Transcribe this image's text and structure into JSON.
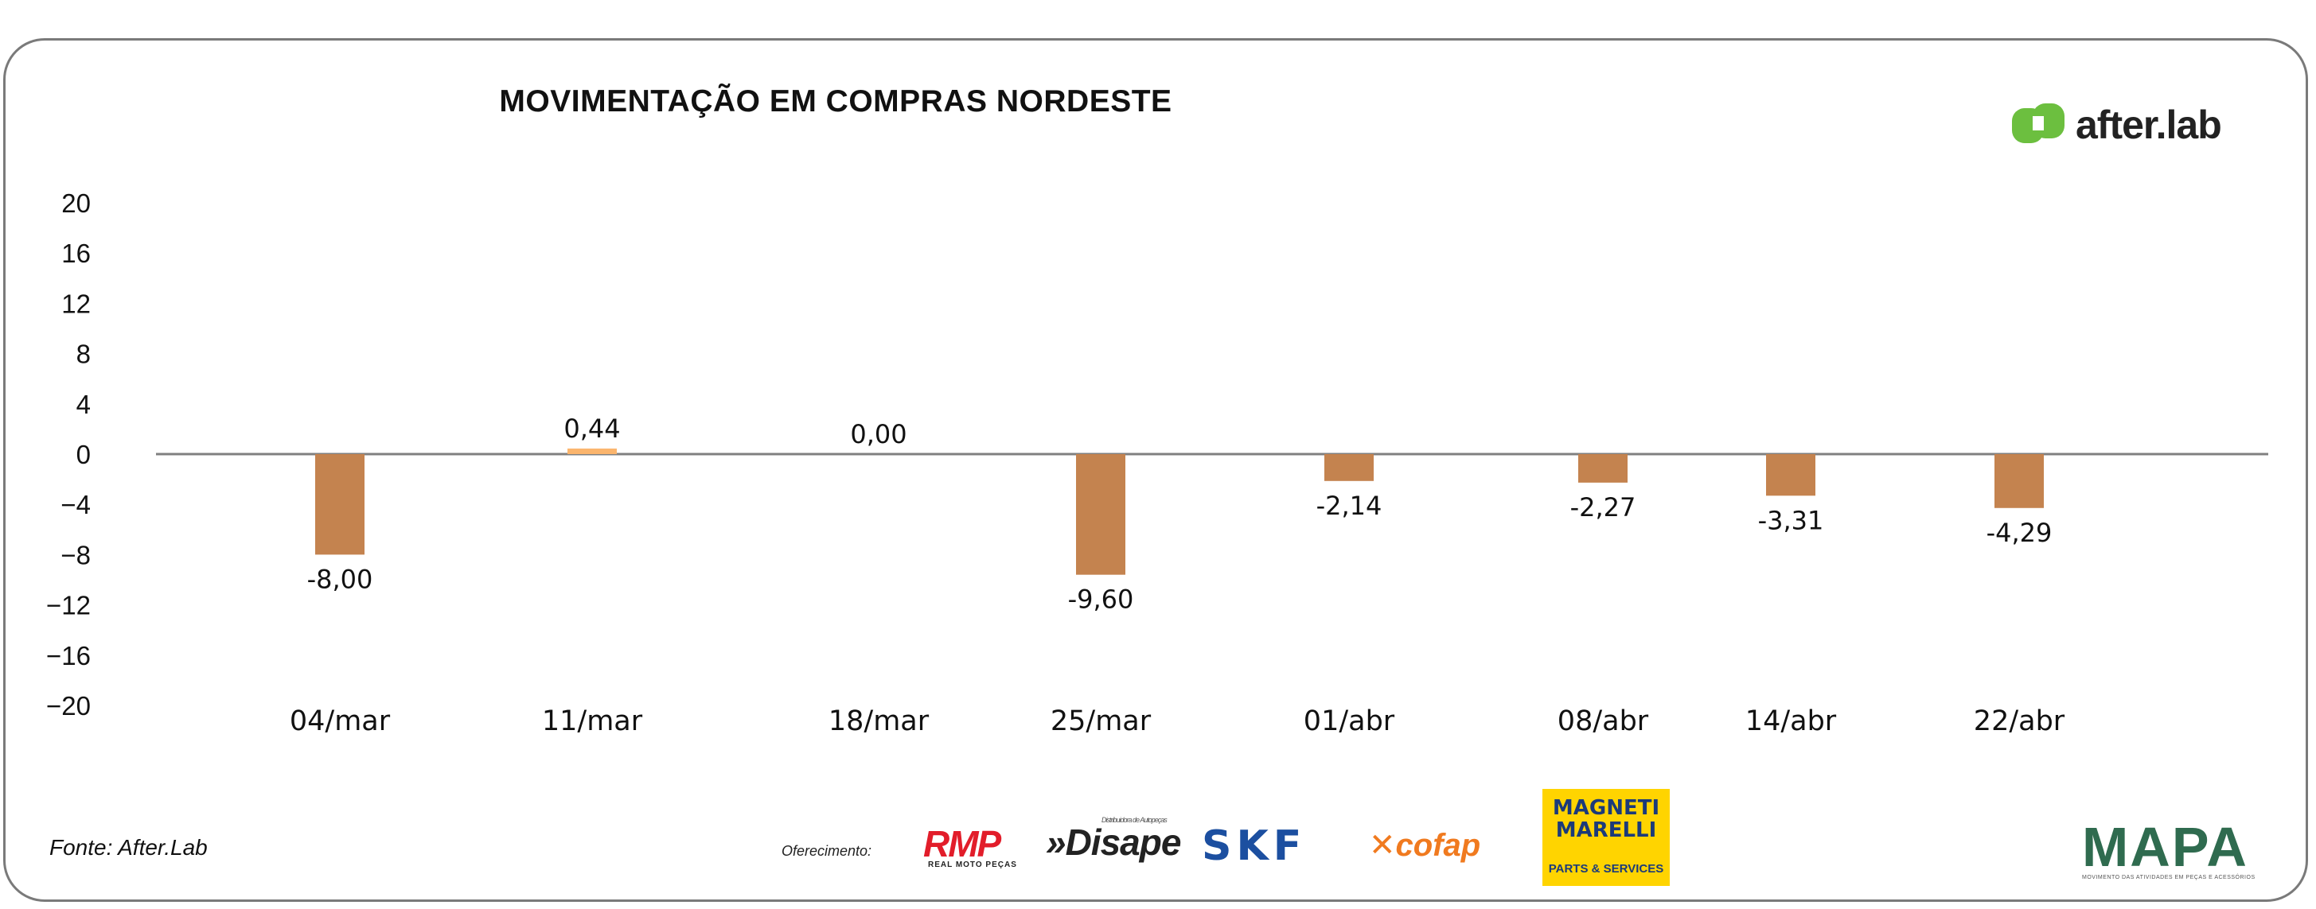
{
  "chart_data": {
    "type": "bar",
    "title": "MOVIMENTAÇÃO EM COMPRAS NORDESTE",
    "categories": [
      "04/mar",
      "11/mar",
      "18/mar",
      "25/mar",
      "01/abr",
      "08/abr",
      "14/abr",
      "22/abr"
    ],
    "values": [
      -8.0,
      0.44,
      0.0,
      -9.6,
      -2.14,
      -2.27,
      -3.31,
      -4.29
    ],
    "value_labels": [
      "-8,00",
      "0,44",
      "0,00",
      "-9,60",
      "-2,14",
      "-2,27",
      "-3,31",
      "-4,29"
    ],
    "y_ticks": [
      20,
      16,
      12,
      8,
      4,
      0,
      -4,
      -8,
      -12,
      -16,
      -20
    ],
    "ylim": [
      -20,
      20
    ],
    "xlabel": "",
    "ylabel": "",
    "grid": false,
    "colors": {
      "negative": "#c4834f",
      "positive": "#fbb56d",
      "axis": "#808080"
    }
  },
  "branding": {
    "brand_name": "after.lab",
    "brand_color": "#6cbf3f"
  },
  "footer": {
    "source": "Fonte: After.Lab",
    "sponsor_label": "Oferecimento:",
    "sponsors": {
      "rmp": "RMP",
      "rmp_sub": "REAL MOTO PEÇAS",
      "disape": "»Disape",
      "disape_sub": "Distribuidora de Autopeças",
      "skf": "SKF",
      "cofap": "cofap",
      "magneti_marelli": "MAGNETI MARELLI",
      "magneti_marelli_sub": "PARTS & SERVICES"
    },
    "mapa": "MAPA",
    "mapa_sub": "MOVIMENTO DAS ATIVIDADES EM PEÇAS E ACESSÓRIOS"
  }
}
